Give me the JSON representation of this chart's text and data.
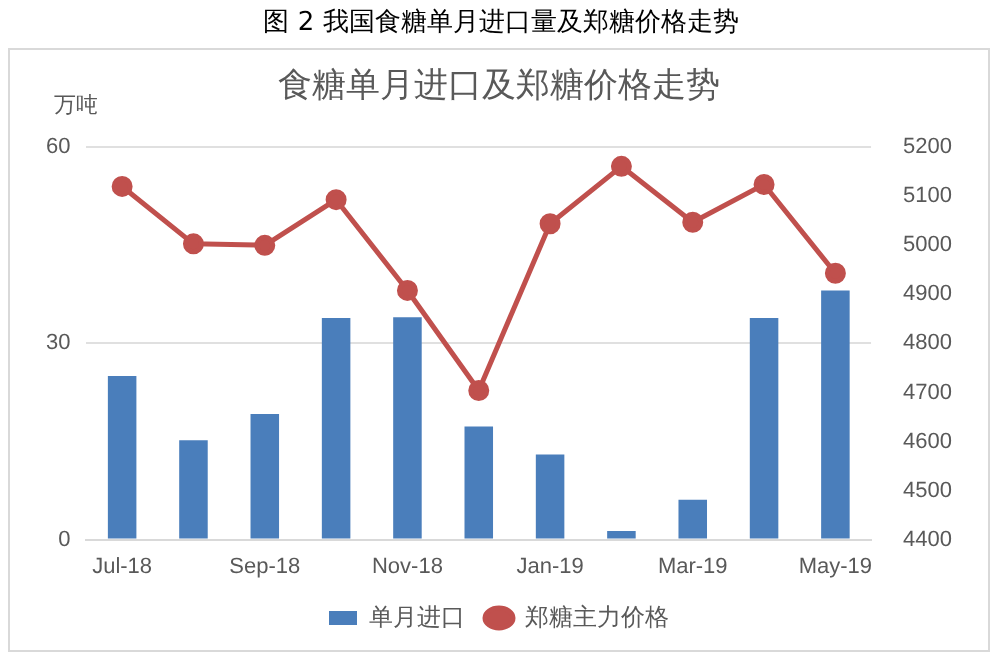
{
  "chart_data": {
    "type": "bar",
    "title": "图 2 我国食糖单月进口量及郑糖价格走势",
    "subtitle": "食糖单月进口及郑糖价格走势",
    "ylabel": "万吨",
    "categories": [
      "Jul-18",
      null,
      "Sep-18",
      null,
      "Nov-18",
      null,
      "Jan-19",
      null,
      "Mar-19",
      null,
      "May-19"
    ],
    "series": [
      {
        "name": "单月进口",
        "color": "#4a7ebb",
        "values": [
          25,
          15.2,
          19.2,
          33.9,
          34,
          17.3,
          13,
          1.3,
          6.1,
          33.9,
          38.1
        ]
      },
      {
        "name": "郑糖主力价格",
        "type": "line",
        "axis": "y2",
        "color": "#c0504d",
        "marker": "circle",
        "values": [
          5120,
          5003,
          5000,
          5093,
          4908,
          4704,
          5044,
          5161,
          5047,
          5124,
          4943
        ]
      }
    ],
    "ylim": [
      0,
      60
    ],
    "yticks": [
      0,
      30,
      60
    ],
    "y2lim": [
      4400,
      5200
    ],
    "y2ticks": [
      4400,
      4500,
      4600,
      4700,
      4800,
      4900,
      5000,
      5100,
      5200
    ],
    "grid": "y",
    "legend": "bottom"
  }
}
